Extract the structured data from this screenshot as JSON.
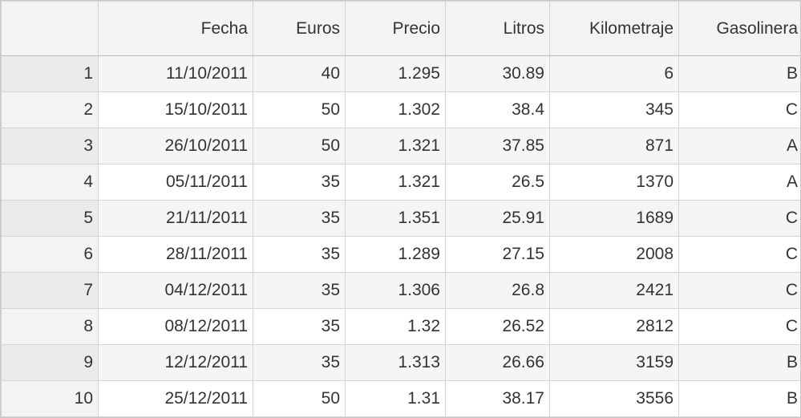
{
  "columns": [
    "Fecha",
    "Euros",
    "Precio",
    "Litros",
    "Kilometraje",
    "Gasolinera"
  ],
  "rows": [
    {
      "n": "1",
      "cells": [
        "11/10/2011",
        "40",
        "1.295",
        "30.89",
        "6",
        "B"
      ]
    },
    {
      "n": "2",
      "cells": [
        "15/10/2011",
        "50",
        "1.302",
        "38.4",
        "345",
        "C"
      ]
    },
    {
      "n": "3",
      "cells": [
        "26/10/2011",
        "50",
        "1.321",
        "37.85",
        "871",
        "A"
      ]
    },
    {
      "n": "4",
      "cells": [
        "05/11/2011",
        "35",
        "1.321",
        "26.5",
        "1370",
        "A"
      ]
    },
    {
      "n": "5",
      "cells": [
        "21/11/2011",
        "35",
        "1.351",
        "25.91",
        "1689",
        "C"
      ]
    },
    {
      "n": "6",
      "cells": [
        "28/11/2011",
        "35",
        "1.289",
        "27.15",
        "2008",
        "C"
      ]
    },
    {
      "n": "7",
      "cells": [
        "04/12/2011",
        "35",
        "1.306",
        "26.8",
        "2421",
        "C"
      ]
    },
    {
      "n": "8",
      "cells": [
        "08/12/2011",
        "35",
        "1.32",
        "26.52",
        "2812",
        "C"
      ]
    },
    {
      "n": "9",
      "cells": [
        "12/12/2011",
        "35",
        "1.313",
        "26.66",
        "3159",
        "B"
      ]
    },
    {
      "n": "10",
      "cells": [
        "25/12/2011",
        "50",
        "1.31",
        "38.17",
        "3556",
        "B"
      ]
    }
  ]
}
